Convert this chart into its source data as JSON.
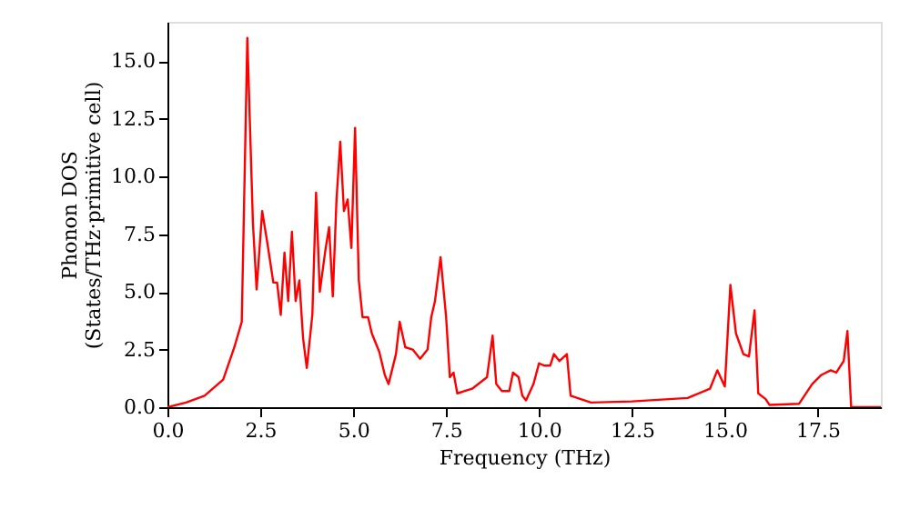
{
  "chart_data": {
    "type": "line",
    "xlabel": "Frequency (THz)",
    "ylabel": "Phonon DOS\n(States/THz·primitive cell)",
    "xlim": [
      0,
      19.2
    ],
    "ylim": [
      0,
      16.7
    ],
    "xticks": [
      {
        "value": 0,
        "label": "0.0"
      },
      2.5,
      {
        "value": 5,
        "label": "5.0"
      },
      7.5,
      {
        "value": 10,
        "label": "10.0"
      },
      12.5,
      {
        "value": 15,
        "label": "15.0"
      },
      17.5
    ],
    "yticks": [
      {
        "value": 0,
        "label": "0.0"
      },
      2.5,
      {
        "value": 5,
        "label": "5.0"
      },
      7.5,
      {
        "value": 10,
        "label": "10.0"
      },
      12.5,
      {
        "value": 15,
        "label": "15.0"
      }
    ],
    "grid": false,
    "line_style": "solid",
    "marker": "none",
    "series": [
      {
        "color": "#ff0000",
        "x": [
          0,
          0.5,
          1,
          1.5,
          1.8,
          2.0,
          2.15,
          2.3,
          2.4,
          2.55,
          2.7,
          2.85,
          2.95,
          3.05,
          3.15,
          3.25,
          3.35,
          3.45,
          3.55,
          3.65,
          3.75,
          3.9,
          4.0,
          4.1,
          4.25,
          4.35,
          4.45,
          4.55,
          4.65,
          4.75,
          4.85,
          4.95,
          5.05,
          5.15,
          5.25,
          5.4,
          5.5,
          5.7,
          5.85,
          5.95,
          6.15,
          6.25,
          6.4,
          6.6,
          6.8,
          7.0,
          7.1,
          7.2,
          7.35,
          7.5,
          7.6,
          7.7,
          7.8,
          8.2,
          8.6,
          8.75,
          8.85,
          9.0,
          9.2,
          9.3,
          9.45,
          9.55,
          9.65,
          9.85,
          10.0,
          10.15,
          10.3,
          10.4,
          10.55,
          10.75,
          10.85,
          11.4,
          12.5,
          14.0,
          14.6,
          14.8,
          15.0,
          15.15,
          15.3,
          15.5,
          15.65,
          15.8,
          15.9,
          16.1,
          16.2,
          17.0,
          17.35,
          17.6,
          17.85,
          18.0,
          18.2,
          18.3,
          18.4,
          19.2
        ],
        "values": [
          0,
          0.2,
          0.5,
          1.2,
          2.6,
          3.7,
          16.0,
          8.0,
          5.1,
          8.5,
          7.0,
          5.4,
          5.4,
          4.0,
          6.7,
          4.6,
          7.6,
          4.6,
          5.5,
          3.0,
          1.7,
          4.0,
          9.3,
          5.0,
          6.8,
          7.8,
          4.8,
          9.0,
          11.5,
          8.5,
          9.0,
          6.9,
          12.1,
          5.5,
          3.9,
          3.9,
          3.2,
          2.4,
          1.4,
          1.0,
          2.3,
          3.7,
          2.6,
          2.5,
          2.1,
          2.5,
          3.9,
          4.6,
          6.5,
          3.9,
          1.3,
          1.5,
          0.6,
          0.8,
          1.3,
          3.1,
          1.0,
          0.7,
          0.7,
          1.5,
          1.3,
          0.5,
          0.3,
          1.0,
          1.9,
          1.8,
          1.8,
          2.3,
          2.0,
          2.3,
          0.5,
          0.2,
          0.25,
          0.4,
          0.8,
          1.6,
          0.9,
          5.3,
          3.2,
          2.3,
          2.2,
          4.2,
          0.6,
          0.35,
          0.1,
          0.15,
          1.0,
          1.4,
          1.6,
          1.5,
          2.0,
          3.3,
          0,
          0
        ]
      }
    ]
  }
}
